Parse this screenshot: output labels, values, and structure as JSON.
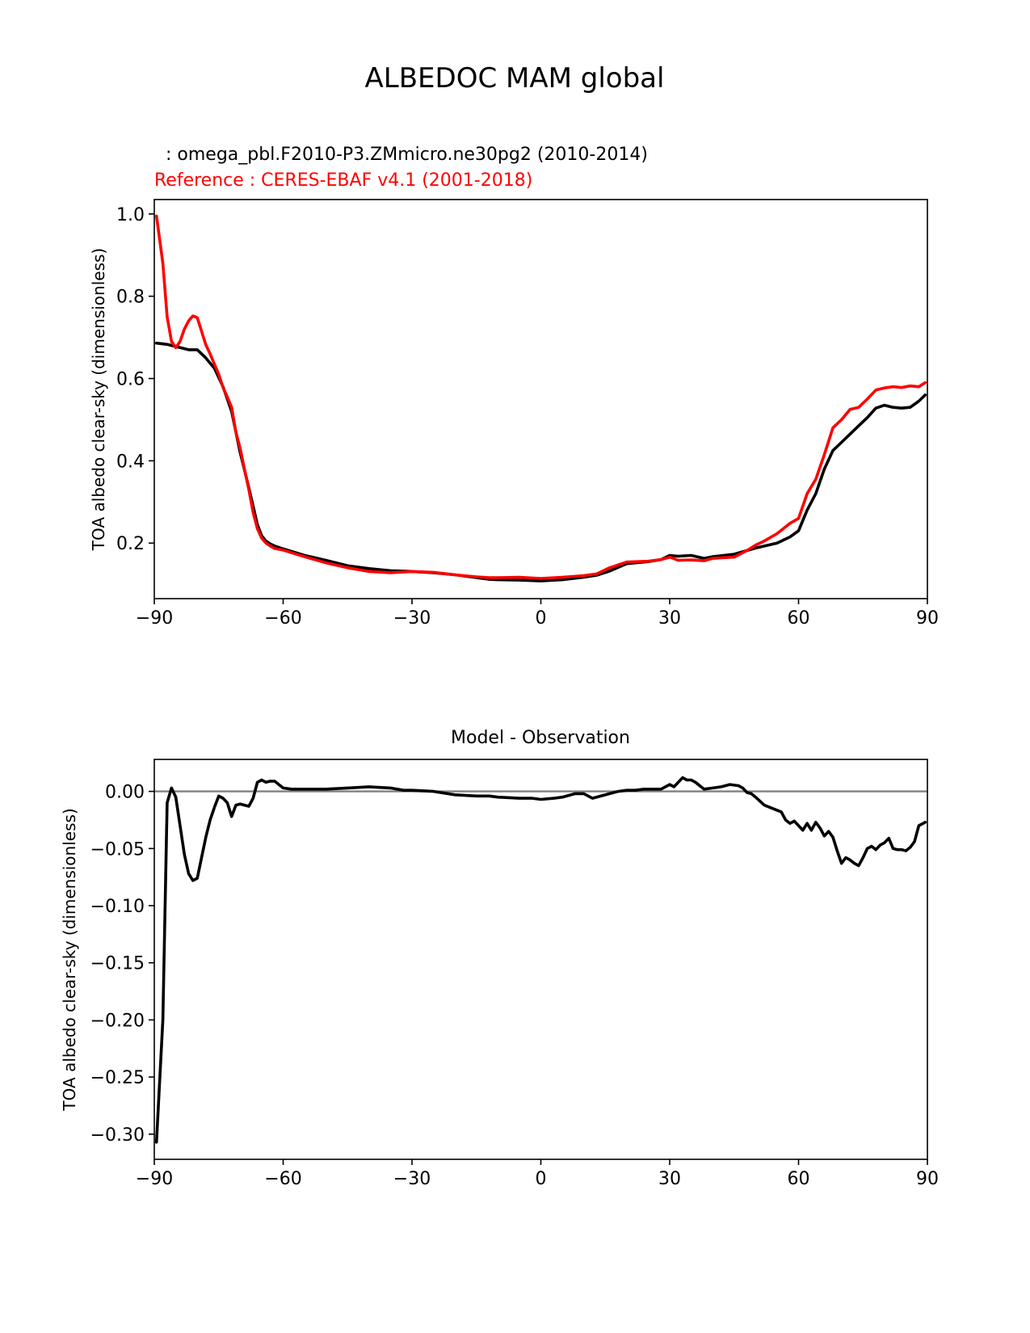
{
  "figure": {
    "title": "ALBEDOC MAM global",
    "test_label": "  : omega_pbl.F2010-P3.ZMmicro.ne30pg2 (2010-2014)",
    "reference_label": "Reference : CERES-EBAF v4.1 (2001-2018)"
  },
  "colors": {
    "test": "#000000",
    "reference": "#ff0000",
    "zero_line": "#808080"
  },
  "chart_data": [
    {
      "type": "line",
      "ylabel": "TOA albedo clear-sky (dimensionless)",
      "xlabel": "",
      "xlim": [
        -90,
        90
      ],
      "ylim": [
        0.065,
        1.035
      ],
      "xticks": [
        -90,
        -60,
        -30,
        0,
        30,
        60,
        90
      ],
      "xtick_labels": [
        "−90",
        "−60",
        "−30",
        "0",
        "30",
        "60",
        "90"
      ],
      "yticks": [
        0.2,
        0.4,
        0.6,
        0.8,
        1.0
      ],
      "ytick_labels": [
        "0.2",
        "0.4",
        "0.6",
        "0.8",
        "1.0"
      ],
      "series": [
        {
          "key": "test",
          "x": [
            -89.5,
            -87,
            -84,
            -82,
            -80,
            -78,
            -76,
            -74,
            -72,
            -71,
            -70,
            -68,
            -66,
            -65,
            -64,
            -63,
            -62,
            -60,
            -55,
            -50,
            -45,
            -40,
            -35,
            -30,
            -25,
            -20,
            -15,
            -12,
            -10,
            -5,
            0,
            5,
            10,
            13,
            16,
            20,
            25,
            28,
            30,
            32,
            35,
            38,
            40,
            45,
            50,
            55,
            58,
            60,
            62,
            64,
            66,
            68,
            70,
            72,
            74,
            76,
            78,
            80,
            82,
            84,
            86,
            88,
            89.5
          ],
          "y": [
            0.686,
            0.683,
            0.675,
            0.67,
            0.67,
            0.65,
            0.625,
            0.58,
            0.52,
            0.47,
            0.42,
            0.335,
            0.245,
            0.218,
            0.205,
            0.198,
            0.193,
            0.186,
            0.17,
            0.158,
            0.145,
            0.138,
            0.133,
            0.131,
            0.128,
            0.123,
            0.116,
            0.112,
            0.111,
            0.11,
            0.108,
            0.111,
            0.117,
            0.122,
            0.132,
            0.15,
            0.155,
            0.16,
            0.17,
            0.168,
            0.17,
            0.163,
            0.167,
            0.173,
            0.188,
            0.2,
            0.215,
            0.23,
            0.28,
            0.32,
            0.38,
            0.425,
            0.445,
            0.465,
            0.485,
            0.505,
            0.528,
            0.535,
            0.53,
            0.528,
            0.53,
            0.545,
            0.56
          ]
        },
        {
          "key": "reference",
          "x": [
            -89.5,
            -88,
            -87,
            -86,
            -85,
            -84,
            -83,
            -82,
            -81,
            -80,
            -79,
            -78,
            -77,
            -76,
            -75,
            -74,
            -73,
            -72,
            -71,
            -70,
            -69,
            -68,
            -67,
            -66,
            -65,
            -64,
            -63,
            -62,
            -60,
            -55,
            -50,
            -45,
            -40,
            -35,
            -30,
            -25,
            -20,
            -15,
            -12,
            -10,
            -5,
            0,
            5,
            10,
            13,
            16,
            20,
            25,
            28,
            30,
            32,
            35,
            38,
            40,
            45,
            48,
            50,
            52,
            55,
            58,
            60,
            62,
            64,
            66,
            68,
            70,
            72,
            74,
            76,
            78,
            80,
            82,
            84,
            86,
            88,
            89.5
          ],
          "y": [
            0.995,
            0.88,
            0.75,
            0.69,
            0.675,
            0.69,
            0.72,
            0.74,
            0.752,
            0.748,
            0.715,
            0.682,
            0.66,
            0.635,
            0.61,
            0.578,
            0.555,
            0.53,
            0.47,
            0.43,
            0.38,
            0.33,
            0.275,
            0.235,
            0.212,
            0.2,
            0.193,
            0.187,
            0.183,
            0.167,
            0.152,
            0.14,
            0.131,
            0.128,
            0.131,
            0.129,
            0.123,
            0.118,
            0.116,
            0.116,
            0.117,
            0.114,
            0.117,
            0.121,
            0.125,
            0.14,
            0.154,
            0.156,
            0.16,
            0.166,
            0.158,
            0.159,
            0.157,
            0.163,
            0.166,
            0.182,
            0.195,
            0.205,
            0.223,
            0.248,
            0.26,
            0.32,
            0.355,
            0.415,
            0.48,
            0.5,
            0.525,
            0.53,
            0.55,
            0.572,
            0.577,
            0.58,
            0.578,
            0.582,
            0.58,
            0.59
          ]
        }
      ]
    },
    {
      "type": "line",
      "title": "Model - Observation",
      "ylabel": "TOA albedo clear-sky (dimensionless)",
      "xlabel": "",
      "xlim": [
        -90,
        90
      ],
      "ylim": [
        -0.322,
        0.028
      ],
      "xticks": [
        -90,
        -60,
        -30,
        0,
        30,
        60,
        90
      ],
      "xtick_labels": [
        "−90",
        "−60",
        "−30",
        "0",
        "30",
        "60",
        "90"
      ],
      "yticks": [
        0.0,
        -0.05,
        -0.1,
        -0.15,
        -0.2,
        -0.25,
        -0.3
      ],
      "ytick_labels": [
        "0.00",
        "−0.05",
        "−0.10",
        "−0.15",
        "−0.20",
        "−0.25",
        "−0.30"
      ],
      "zero_line": 0,
      "series": [
        {
          "key": "test",
          "x": [
            -89.5,
            -88,
            -87,
            -86,
            -85,
            -84,
            -83,
            -82,
            -81,
            -80,
            -79,
            -78,
            -77,
            -76,
            -75,
            -74,
            -73,
            -72,
            -71,
            -70,
            -69,
            -68,
            -67,
            -66,
            -65,
            -64,
            -63,
            -62,
            -60,
            -58,
            -55,
            -50,
            -45,
            -40,
            -35,
            -32,
            -30,
            -25,
            -20,
            -15,
            -12,
            -10,
            -5,
            -2,
            0,
            3,
            5,
            8,
            10,
            12,
            14,
            16,
            18,
            20,
            22,
            24,
            26,
            28,
            30,
            31,
            32,
            33,
            34,
            35,
            36,
            38,
            40,
            42,
            44,
            46,
            47,
            48,
            49,
            50,
            52,
            54,
            56,
            57,
            58,
            59,
            60,
            61,
            62,
            63,
            64,
            65,
            66,
            67,
            68,
            69,
            70,
            71,
            72,
            73,
            74,
            75,
            76,
            77,
            78,
            79,
            80,
            81,
            82,
            83,
            84,
            85,
            86,
            87,
            88,
            89,
            89.5
          ],
          "y": [
            -0.307,
            -0.2,
            -0.01,
            0.003,
            -0.005,
            -0.03,
            -0.055,
            -0.072,
            -0.078,
            -0.076,
            -0.058,
            -0.04,
            -0.025,
            -0.014,
            -0.004,
            -0.006,
            -0.01,
            -0.022,
            -0.012,
            -0.011,
            -0.012,
            -0.013,
            -0.006,
            0.008,
            0.01,
            0.008,
            0.009,
            0.009,
            0.003,
            0.002,
            0.002,
            0.002,
            0.003,
            0.004,
            0.003,
            0.001,
            0.001,
            0.0,
            -0.003,
            -0.004,
            -0.004,
            -0.005,
            -0.006,
            -0.006,
            -0.007,
            -0.006,
            -0.005,
            -0.002,
            -0.002,
            -0.006,
            -0.004,
            -0.002,
            0.0,
            0.001,
            0.001,
            0.002,
            0.002,
            0.002,
            0.006,
            0.004,
            0.008,
            0.012,
            0.01,
            0.01,
            0.008,
            0.002,
            0.003,
            0.004,
            0.006,
            0.005,
            0.003,
            -0.001,
            -0.002,
            -0.005,
            -0.012,
            -0.015,
            -0.018,
            -0.025,
            -0.028,
            -0.026,
            -0.03,
            -0.034,
            -0.028,
            -0.034,
            -0.027,
            -0.032,
            -0.039,
            -0.035,
            -0.04,
            -0.052,
            -0.063,
            -0.058,
            -0.06,
            -0.063,
            -0.065,
            -0.058,
            -0.05,
            -0.048,
            -0.051,
            -0.047,
            -0.045,
            -0.041,
            -0.05,
            -0.051,
            -0.051,
            -0.052,
            -0.049,
            -0.044,
            -0.03,
            -0.028,
            -0.027
          ]
        }
      ]
    }
  ]
}
